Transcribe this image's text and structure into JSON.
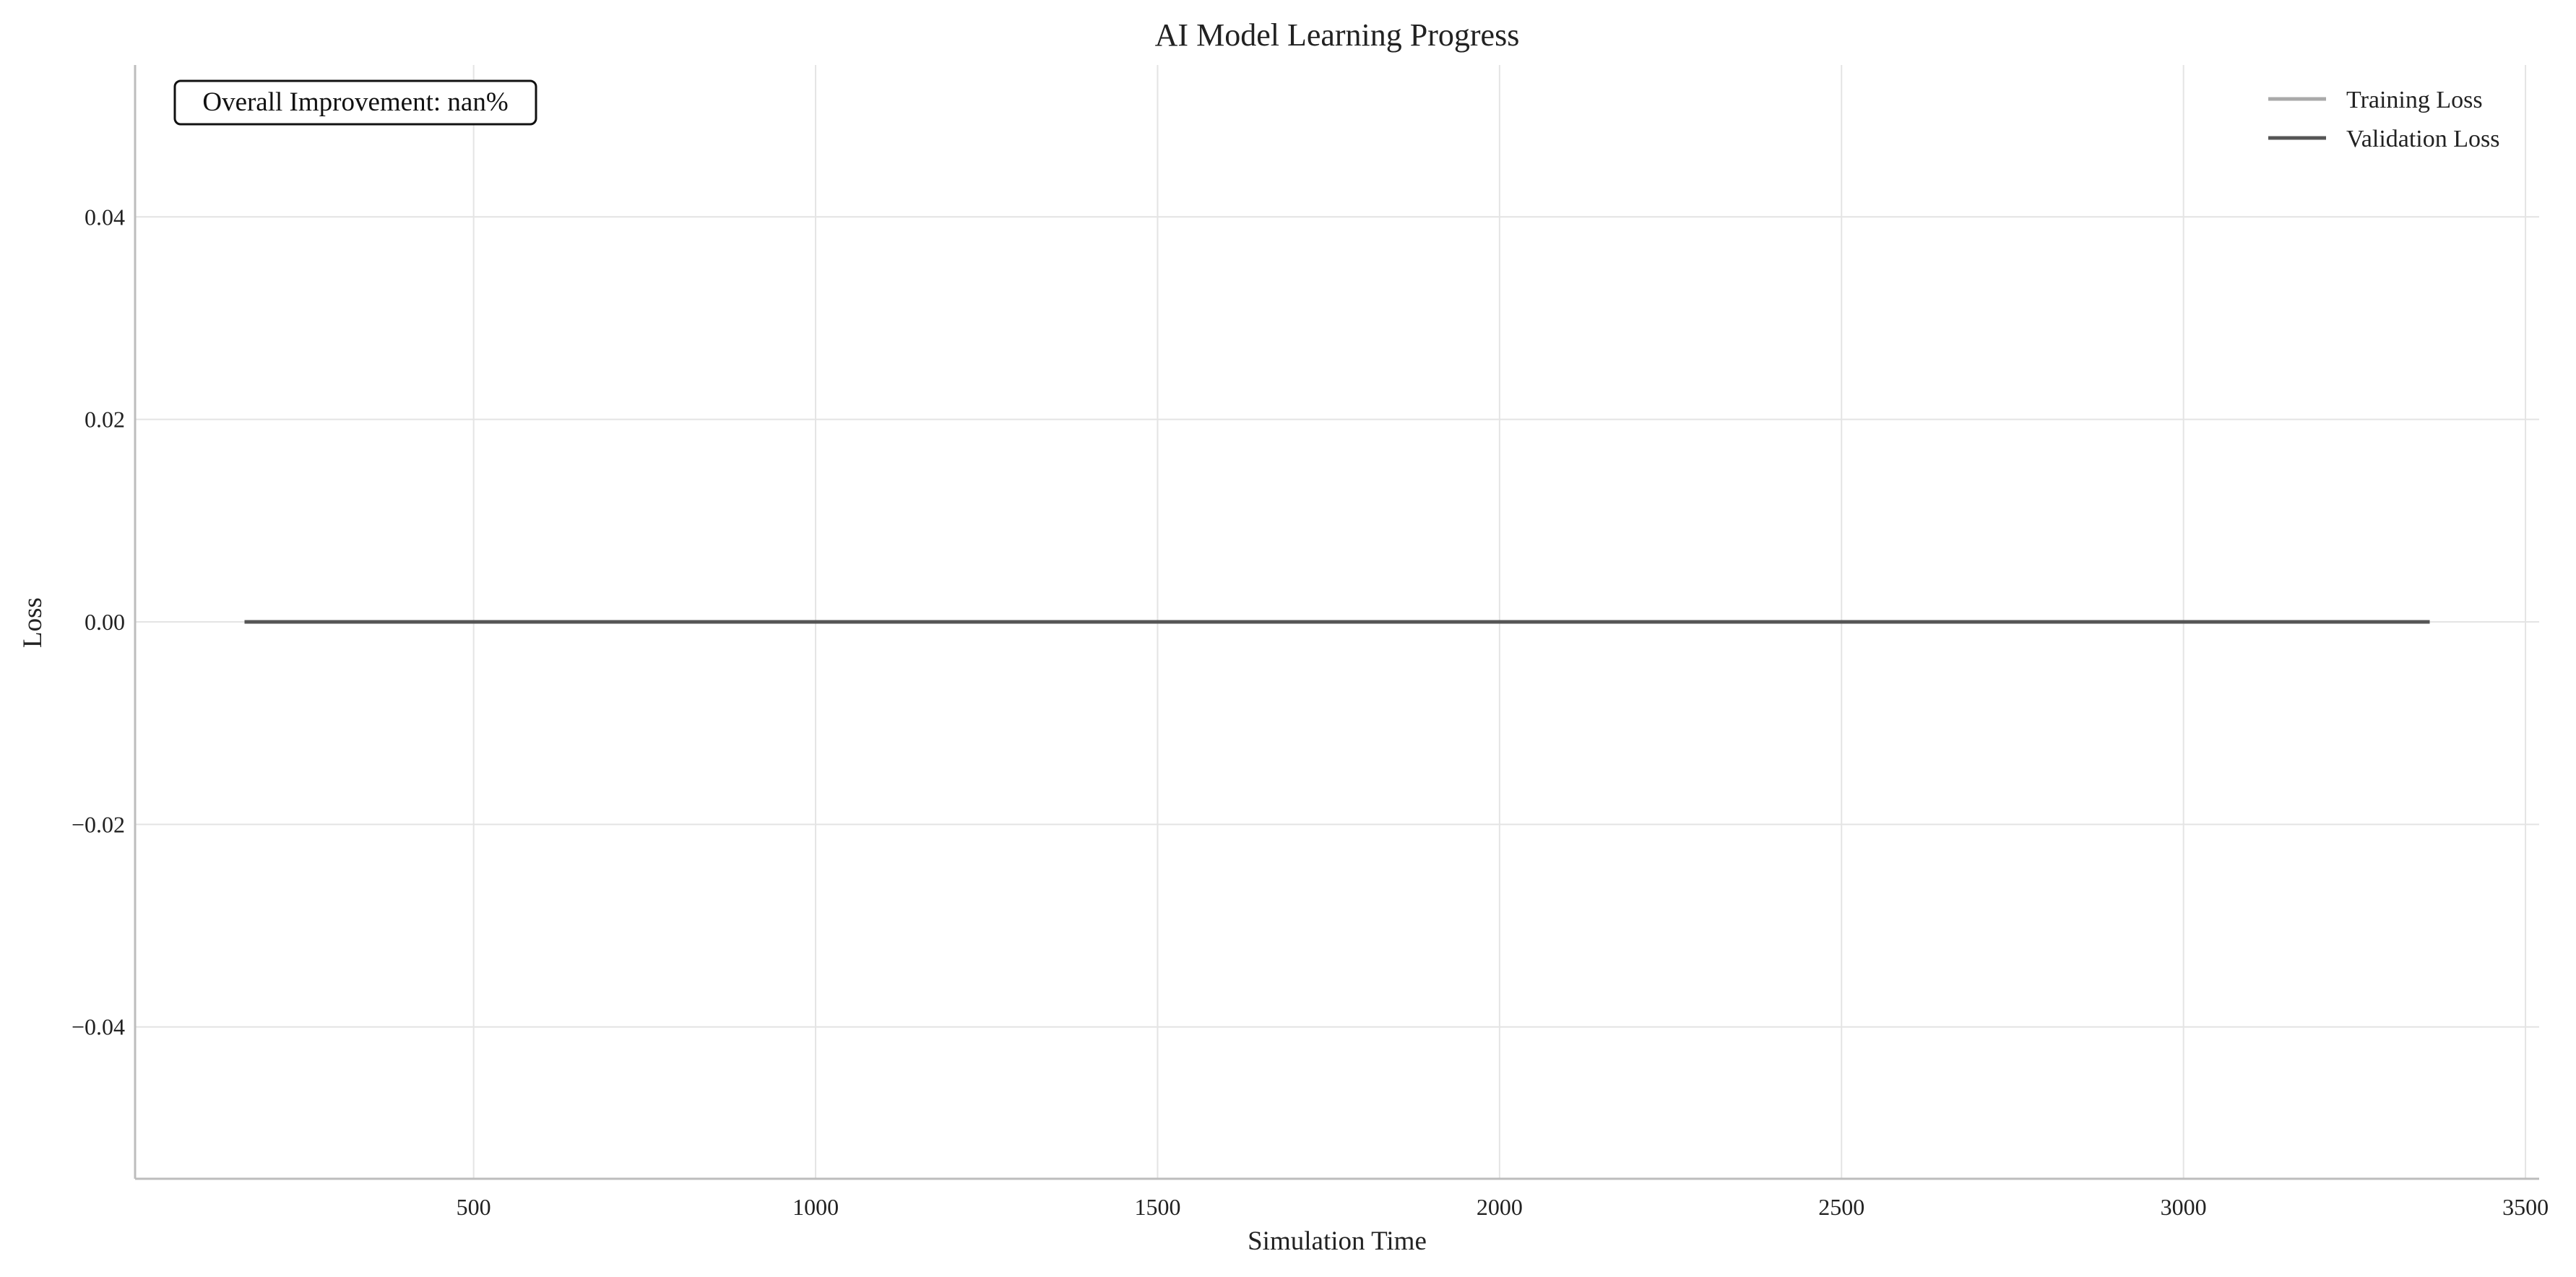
{
  "chart_data": {
    "type": "line",
    "title": "AI Model Learning Progress",
    "xlabel": "Simulation Time",
    "ylabel": "Loss",
    "xlim": [
      5,
      3520
    ],
    "ylim": [
      -0.055,
      0.055
    ],
    "xticks": [
      500,
      1000,
      1500,
      2000,
      2500,
      3000,
      3500
    ],
    "xtick_labels": [
      "500",
      "1000",
      "1500",
      "2000",
      "2500",
      "3000",
      "3500"
    ],
    "yticks": [
      -0.04,
      -0.02,
      0.0,
      0.02,
      0.04
    ],
    "ytick_labels": [
      "−0.04",
      "−0.02",
      "0.00",
      "0.02",
      "0.04"
    ],
    "grid": true,
    "legend_position": "top-right",
    "annotation": "Overall Improvement: nan%",
    "series": [
      {
        "name": "Training Loss",
        "color": "#a9a9a9",
        "x": [
          165,
          3360
        ],
        "y": [
          0.0,
          0.0
        ]
      },
      {
        "name": "Validation Loss",
        "color": "#555555",
        "x": [
          165,
          3360
        ],
        "y": [
          0.0,
          0.0
        ]
      }
    ]
  }
}
